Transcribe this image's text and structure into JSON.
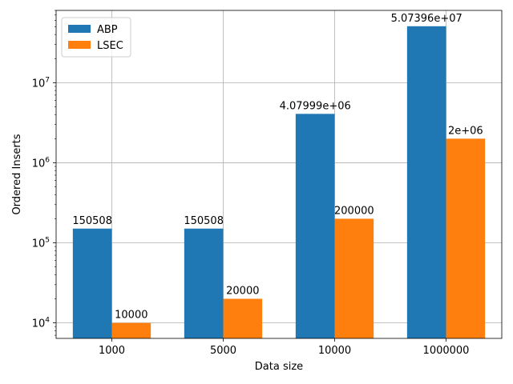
{
  "chart_data": {
    "type": "bar",
    "title": "",
    "xlabel": "Data size",
    "ylabel": "Ordered Inserts",
    "categories": [
      "1000",
      "5000",
      "10000",
      "1000000"
    ],
    "series": [
      {
        "name": "ABP",
        "color": "#1f77b4",
        "values": [
          150508,
          150508,
          4079990,
          50739600
        ],
        "labels": [
          "150508",
          "150508",
          "4.07999e+06",
          "5.07396e+07"
        ]
      },
      {
        "name": "LSEC",
        "color": "#ff7f0e",
        "values": [
          10000,
          20000,
          200000,
          2000000
        ],
        "labels": [
          "10000",
          "20000",
          "200000",
          "2e+06"
        ]
      }
    ],
    "y_scale": "log",
    "ylim": [
      6400,
      80000000
    ],
    "y_ticks": [
      {
        "value": 10000,
        "base": "10",
        "exp": "4"
      },
      {
        "value": 100000,
        "base": "10",
        "exp": "5"
      },
      {
        "value": 1000000,
        "base": "10",
        "exp": "6"
      },
      {
        "value": 10000000,
        "base": "10",
        "exp": "7"
      }
    ],
    "grid": true,
    "legend_position": "top-left"
  }
}
